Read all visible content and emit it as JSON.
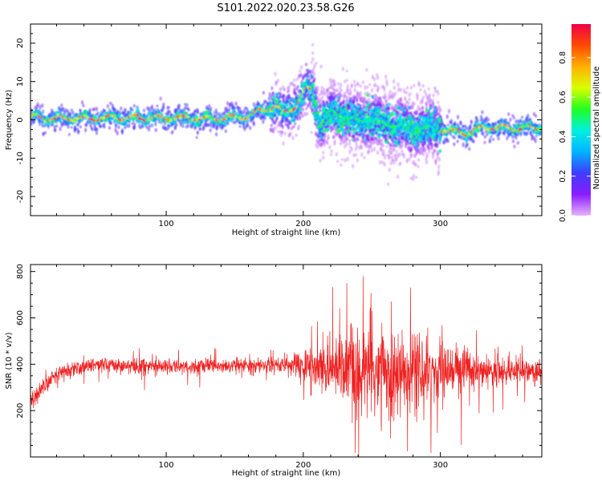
{
  "figure_title": "S101.2022.020.23.58.G26",
  "colors": {
    "snr_line": "#ee2222",
    "colormap": [
      "#e6b3ff",
      "#8a1cff",
      "#3d3dff",
      "#00b4ff",
      "#00f0e0",
      "#22ff22",
      "#d8ff00",
      "#ffb000",
      "#ff4a00",
      "#f0004a"
    ]
  },
  "colorbar": {
    "label": "Normalized spectral amplitude",
    "ticks": [
      "0.0",
      "0.2",
      "0.4",
      "0.6",
      "0.8"
    ],
    "range": [
      0,
      0.97
    ]
  },
  "chart_data": [
    {
      "type": "heatmap",
      "title": "",
      "xlabel": "Height of straight line (km)",
      "ylabel": "Frequency (Hz)",
      "xlim": [
        1,
        374
      ],
      "ylim": [
        -25,
        25
      ],
      "xticks": [
        100,
        200,
        300
      ],
      "yticks": [
        20,
        10,
        0,
        -10,
        -20
      ],
      "ridge": {
        "x": [
          1,
          20,
          40,
          60,
          80,
          100,
          120,
          140,
          160,
          170,
          180,
          185,
          195,
          203,
          207,
          212,
          220,
          230,
          240,
          250,
          260,
          270,
          280,
          290,
          300,
          310,
          320,
          330,
          340,
          360,
          374
        ],
        "y": [
          0.5,
          0.5,
          0.3,
          0.6,
          0.6,
          0.6,
          0.3,
          0.3,
          1.0,
          2.5,
          3.5,
          1.5,
          3.5,
          8.5,
          7.0,
          -1.0,
          2.0,
          1.0,
          -0.5,
          0.5,
          -1.0,
          -1.5,
          -2.5,
          -2.0,
          -2.5,
          -3.0,
          -3.5,
          -2.0,
          -2.0,
          -2.0,
          -2.0
        ]
      },
      "grid": false
    },
    {
      "type": "line",
      "title": "",
      "xlabel": "Height of straight line (km)",
      "ylabel": "SNR (10 * v/v)",
      "xlim": [
        1,
        374
      ],
      "ylim": [
        0,
        830
      ],
      "xticks": [
        100,
        200,
        300
      ],
      "yticks": [
        800,
        600,
        400,
        200
      ],
      "series": [
        {
          "envelope_x": [
            1,
            5,
            10,
            15,
            20,
            30,
            50,
            80,
            120,
            160,
            190,
            205,
            215,
            225,
            235,
            250,
            260,
            270,
            285,
            300,
            320,
            340,
            360,
            374
          ],
          "mean": [
            230,
            260,
            300,
            330,
            360,
            380,
            400,
            390,
            390,
            395,
            400,
            390,
            380,
            370,
            370,
            370,
            370,
            370,
            370,
            370,
            370,
            370,
            370,
            370
          ],
          "amplitude": [
            60,
            60,
            60,
            60,
            50,
            50,
            50,
            50,
            50,
            50,
            60,
            120,
            180,
            250,
            300,
            330,
            330,
            300,
            260,
            200,
            140,
            110,
            80,
            70
          ]
        }
      ],
      "grid": false
    }
  ]
}
